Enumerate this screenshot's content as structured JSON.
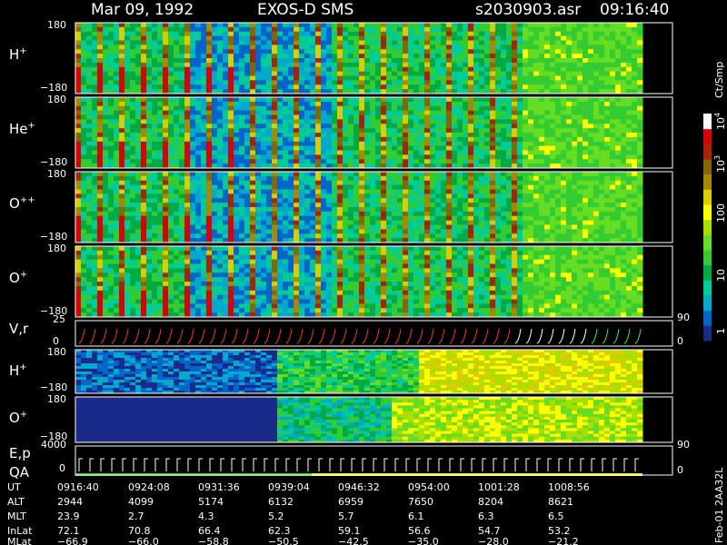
{
  "header": {
    "date": "Mar 09, 1992",
    "instrument": "EXOS-D SMS",
    "file": "s2030903.asr",
    "time": "09:16:40"
  },
  "side_label": "Feb-01 2AA32L",
  "colors": {
    "background": "#000000",
    "axes": "#ffffff",
    "scale": [
      "#1a2a8a",
      "#0066cc",
      "#00aacc",
      "#00cc99",
      "#00aa44",
      "#33cc33",
      "#66dd22",
      "#aadd00",
      "#ffff00",
      "#ddcc00",
      "#aa8800",
      "#886600",
      "#aa2200",
      "#dd0000",
      "#ffffff"
    ]
  },
  "chart_data": [
    {
      "type": "heatmap",
      "panels": [
        {
          "label_base": "H",
          "label_sup": "+",
          "ytop": "180",
          "ybot": "−180"
        },
        {
          "label_base": "He",
          "label_sup": "+",
          "ytop": "180",
          "ybot": "−180"
        },
        {
          "label_base": "O",
          "label_sup": "++",
          "ytop": "180",
          "ybot": "−180"
        },
        {
          "label_base": "O",
          "label_sup": "+",
          "ytop": "180",
          "ybot": "−180"
        }
      ],
      "colorbar": {
        "unit": "Ct/Smp",
        "ticks": [
          {
            "base": "1",
            "exp": ""
          },
          {
            "base": "10",
            "exp": ""
          },
          {
            "base": "100",
            "exp": ""
          },
          {
            "base": "10",
            "exp": "3"
          },
          {
            "base": "10",
            "exp": "4"
          }
        ]
      }
    },
    {
      "type": "line",
      "label": "V,r",
      "left_ticks": [
        "25",
        "0"
      ],
      "right_ticks": [
        "90",
        "0"
      ]
    },
    {
      "type": "heatmap",
      "panels": [
        {
          "label_base": "H",
          "label_sup": "+",
          "ytop": "180",
          "ybot": "−180"
        },
        {
          "label_base": "O",
          "label_sup": "+",
          "ytop": "180",
          "ybot": "−180"
        }
      ]
    },
    {
      "type": "line",
      "label1": "E,p",
      "label2": "QA",
      "left_ticks": [
        "4000",
        "0"
      ],
      "right_ticks": [
        "90",
        "0"
      ]
    },
    {
      "type": "table",
      "rows": [
        {
          "name": "UT",
          "values": [
            "0916:40",
            "0924:08",
            "0931:36",
            "0939:04",
            "0946:32",
            "0954:00",
            "1001:28",
            "1008:56"
          ]
        },
        {
          "name": "ALT",
          "values": [
            "2944",
            "4099",
            "5174",
            "6132",
            "6959",
            "7650",
            "8204",
            "8621"
          ]
        },
        {
          "name": "MLT",
          "values": [
            "23.9",
            "2.7",
            "4.3",
            "5.2",
            "5.7",
            "6.1",
            "6.3",
            "6.5"
          ]
        },
        {
          "name": "InLat",
          "values": [
            "72.1",
            "70.8",
            "66.4",
            "62.3",
            "59.1",
            "56.6",
            "54.7",
            "53.2"
          ]
        },
        {
          "name": "MLat",
          "values": [
            "−66.9",
            "−66.0",
            "−58.8",
            "−50.5",
            "−42.5",
            "−35.0",
            "−28.0",
            "−21.2"
          ]
        }
      ]
    }
  ]
}
